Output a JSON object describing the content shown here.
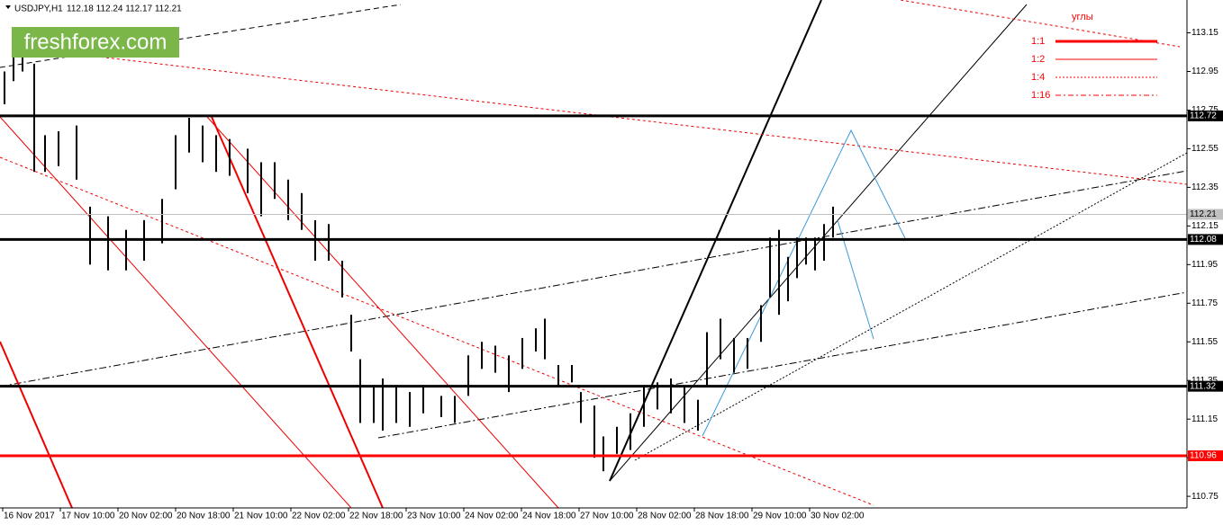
{
  "chart_data": {
    "type": "hilo",
    "title": "USDJPY,H1",
    "quote": "112.18 112.24 112.17 112.21",
    "logo": "freshforex.com",
    "color": "#000000",
    "x": [
      1.25,
      3.75,
      6.25,
      9.5,
      12.5,
      16.25,
      21.25,
      25,
      30,
      35,
      40,
      45,
      48.75,
      52.5,
      56.25,
      60,
      63.75,
      68.75,
      72.5,
      76.25,
      80,
      83.75,
      87.5,
      91.25,
      95,
      97.5,
      100,
      103.75,
      106.25,
      110,
      113.75,
      117.5,
      122.5,
      126.25,
      130,
      133.75,
      137.5,
      141.25,
      145,
      148.75,
      151.25,
      155,
      158.75,
      161.25,
      165,
      167.5,
      171.25,
      175,
      178.75,
      182.5,
      186.25,
      190,
      193.75,
      196.25,
      200,
      203.75,
      207.5,
      211.25,
      213.75,
      216.25,
      218.75,
      221.25,
      223.75,
      226.25,
      228.75,
      231.25
    ],
    "high": [
      112.95,
      113.06,
      113.13,
      112.99,
      112.62,
      112.64,
      112.67,
      112.25,
      112.2,
      112.13,
      112.18,
      112.29,
      112.62,
      112.71,
      112.67,
      112.62,
      112.6,
      112.55,
      112.48,
      112.48,
      112.39,
      112.32,
      112.18,
      112.16,
      111.97,
      111.69,
      111.46,
      111.32,
      111.36,
      111.32,
      111.29,
      111.32,
      111.27,
      111.27,
      111.48,
      111.55,
      111.53,
      111.48,
      111.57,
      111.62,
      111.67,
      111.43,
      111.43,
      111.29,
      111.22,
      111.06,
      111.11,
      111.18,
      111.32,
      111.34,
      111.36,
      111.32,
      111.25,
      111.6,
      111.67,
      111.57,
      111.57,
      111.74,
      112.09,
      112.13,
      111.99,
      112.09,
      112.09,
      112.09,
      112.16,
      112.25
    ],
    "low": [
      112.78,
      112.9,
      112.95,
      112.43,
      112.43,
      112.46,
      112.39,
      111.95,
      111.92,
      111.92,
      111.97,
      112.06,
      112.34,
      112.53,
      112.48,
      112.43,
      112.41,
      112.32,
      112.2,
      112.29,
      112.18,
      112.13,
      111.97,
      111.97,
      111.78,
      111.5,
      111.13,
      111.13,
      111.09,
      111.13,
      111.11,
      111.18,
      111.16,
      111.13,
      111.27,
      111.41,
      111.39,
      111.29,
      111.41,
      111.5,
      111.46,
      111.32,
      111.34,
      111.13,
      110.95,
      110.88,
      110.97,
      110.99,
      111.11,
      111.2,
      111.18,
      111.13,
      111.09,
      111.32,
      111.46,
      111.39,
      111.41,
      111.55,
      111.78,
      111.69,
      111.76,
      111.88,
      111.95,
      111.92,
      111.97,
      112.09
    ],
    "xlim": [
      0,
      329.5
    ],
    "xticks": [
      {
        "value": 0.75,
        "label": "16 Nov 2017"
      },
      {
        "value": 16.75,
        "label": "17 Nov 10:00"
      },
      {
        "value": 32.75,
        "label": "20 Nov 02:00"
      },
      {
        "value": 48.75,
        "label": "20 Nov 18:00"
      },
      {
        "value": 64.75,
        "label": "21 Nov 10:00"
      },
      {
        "value": 80.75,
        "label": "22 Nov 02:00"
      },
      {
        "value": 96.75,
        "label": "22 Nov 18:00"
      },
      {
        "value": 112.75,
        "label": "23 Nov 10:00"
      },
      {
        "value": 128.75,
        "label": "24 Nov 02:00"
      },
      {
        "value": 144.75,
        "label": "24 Nov 18:00"
      },
      {
        "value": 160.75,
        "label": "27 Nov 10:00"
      },
      {
        "value": 176.75,
        "label": "28 Nov 02:00"
      },
      {
        "value": 192.75,
        "label": "28 Nov 18:00"
      },
      {
        "value": 208.75,
        "label": "29 Nov 10:00"
      },
      {
        "value": 224.75,
        "label": "30 Nov 02:00"
      }
    ],
    "ylim": [
      110.69,
      113.32
    ],
    "yticks": [
      113.15,
      112.95,
      112.75,
      112.55,
      112.35,
      112.15,
      111.95,
      111.75,
      111.55,
      111.35,
      111.15,
      110.95,
      110.75
    ],
    "levels": [
      {
        "value": 112.72,
        "color": "#000000",
        "width": 3
      },
      {
        "value": 112.21,
        "color": "#c0c0c0",
        "width": 1
      },
      {
        "value": 112.08,
        "color": "#000000",
        "width": 3
      },
      {
        "value": 111.32,
        "color": "#000000",
        "width": 3
      },
      {
        "value": 110.96,
        "color": "#ff0000",
        "width": 3
      }
    ],
    "legend": {
      "title": "углы",
      "entries": [
        {
          "label": "1:1",
          "dash": "none",
          "width": 3
        },
        {
          "label": "1:2",
          "dash": "none",
          "width": 1
        },
        {
          "label": "1:4",
          "dash": "2,2",
          "width": 1
        },
        {
          "label": "1:16",
          "dash": "6,3,2,3",
          "width": 1
        }
      ],
      "color": "#ff0000"
    }
  }
}
